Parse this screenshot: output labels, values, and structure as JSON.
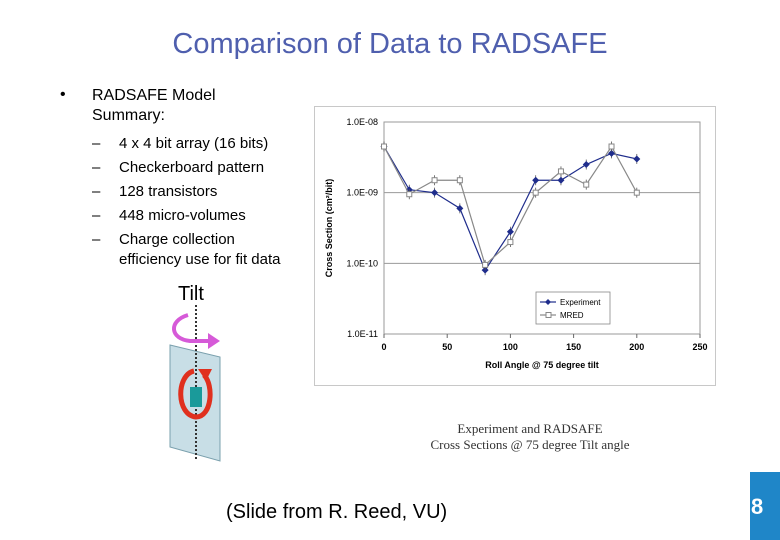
{
  "slide": {
    "title": "Comparison of Data to RADSAFE",
    "bullet_symbol": "•",
    "bullet_line1": "RADSAFE Model",
    "bullet_line2": "Summary:",
    "sub_items": [
      "4 x 4 bit array (16 bits)",
      "Checkerboard pattern",
      "128 transistors",
      "448 micro-volumes",
      "Charge collection",
      "efficiency use for fit data"
    ],
    "dash": "–",
    "tilt_label": "Tilt",
    "caption_line1": "Experiment and RADSAFE",
    "caption_line2": "Cross Sections @ 75 degree Tilt angle",
    "credit": "(Slide from R. Reed, VU)",
    "corner_glyph": "8"
  },
  "colors": {
    "title": "#4f5fae",
    "experiment": "#1f2d8c",
    "mred": "#888888",
    "tilt_arrow": "#d65ad8",
    "roll_arrow": "#e0301e",
    "tilt_panel": "#c8dee6",
    "corner": "#1f86c8"
  },
  "chart_data": {
    "type": "line",
    "xlabel": "Roll Angle @ 75 degree tilt",
    "ylabel": "Cross Section (cm²/bit)",
    "scale": "log",
    "xlim": [
      0,
      250
    ],
    "ylim": [
      1e-11,
      1e-08
    ],
    "xticks": [
      "0",
      "50",
      "100",
      "150",
      "200",
      "250"
    ],
    "yticks": [
      "1.0E-08",
      "1.0E-09",
      "1.0E-10",
      "1.0E-11"
    ],
    "legend_position": "bottom-right",
    "series": [
      {
        "name": "Experiment",
        "marker": "diamond",
        "x": [
          0,
          20,
          40,
          60,
          80,
          100,
          120,
          140,
          160,
          180,
          200
        ],
        "y": [
          4.5e-09,
          1.1e-09,
          1e-09,
          6e-10,
          8e-11,
          2.8e-10,
          1.5e-09,
          1.5e-09,
          2.5e-09,
          3.6e-09,
          3e-09
        ]
      },
      {
        "name": "MRED",
        "marker": "square",
        "x": [
          0,
          20,
          40,
          60,
          80,
          100,
          120,
          140,
          160,
          180,
          200
        ],
        "y": [
          4.5e-09,
          9.5e-10,
          1.5e-09,
          1.5e-09,
          9.5e-11,
          2e-10,
          1e-09,
          2e-09,
          1.3e-09,
          4.5e-09,
          1e-09
        ]
      }
    ]
  }
}
